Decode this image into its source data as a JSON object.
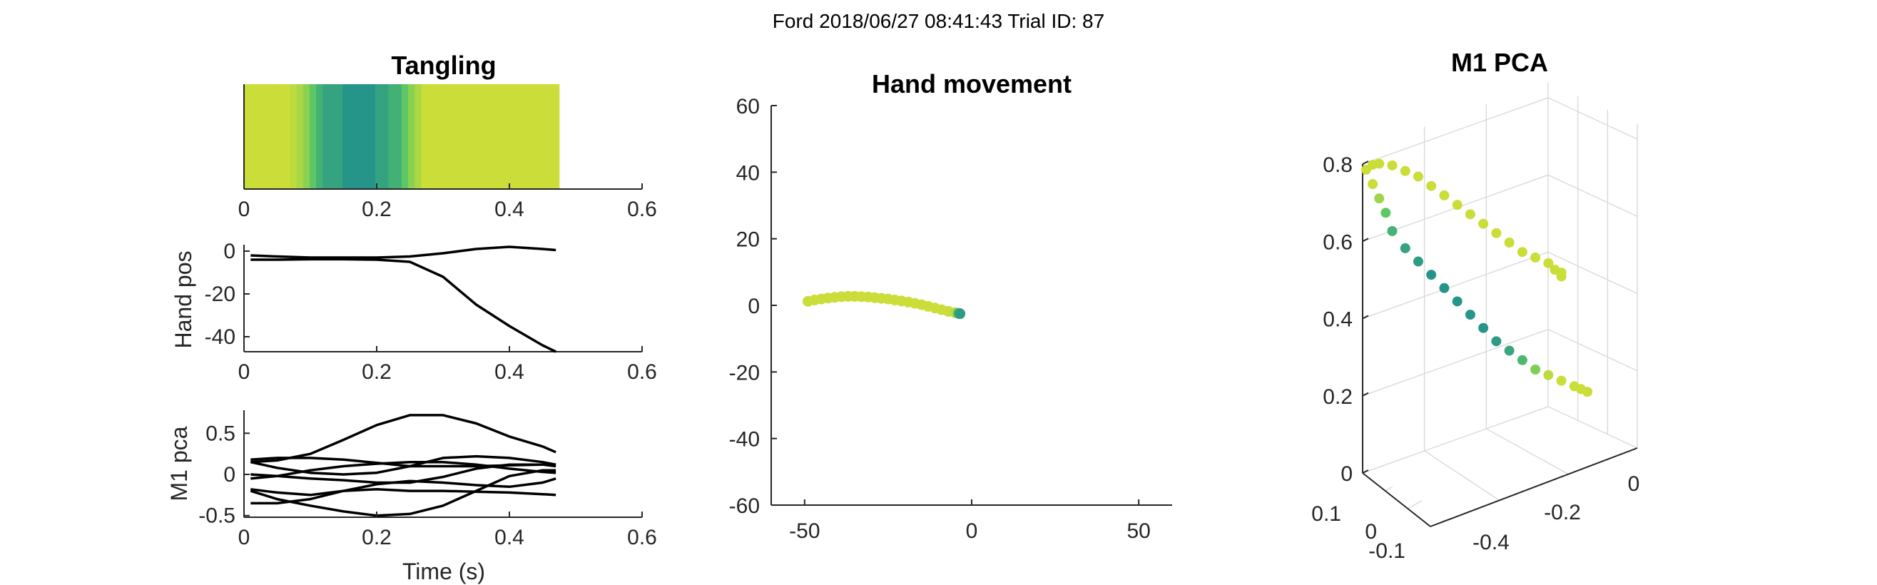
{
  "figure": {
    "title": "Ford 2018/06/27 08:41:43 Trial ID: 87"
  },
  "colors": {
    "axis": "#262626",
    "trace": "#000000",
    "grid": "#dcdcdc",
    "viridis": [
      "#440154",
      "#3b528b",
      "#21918c",
      "#5ec962",
      "#fde725"
    ]
  },
  "chart_data": [
    {
      "type": "heatmap",
      "title": "Tangling",
      "xlim": [
        0,
        0.6
      ],
      "xticks": [
        "0",
        "0.2",
        "0.4",
        "0.6"
      ],
      "x_range": [
        0,
        0.475
      ],
      "values": [
        0.92,
        0.92,
        0.92,
        0.92,
        0.92,
        0.92,
        0.92,
        0.9,
        0.87,
        0.82,
        0.74,
        0.64,
        0.58,
        0.58,
        0.58,
        0.52,
        0.52,
        0.52,
        0.52,
        0.52,
        0.58,
        0.58,
        0.64,
        0.64,
        0.74,
        0.82,
        0.87,
        0.92,
        0.92,
        0.92,
        0.92,
        0.92,
        0.92,
        0.92,
        0.92,
        0.92,
        0.92,
        0.92,
        0.92,
        0.92,
        0.92,
        0.92,
        0.92,
        0.92,
        0.92,
        0.92,
        0.92,
        0.92
      ],
      "grid": false
    },
    {
      "type": "line",
      "title": "",
      "ylabel": "Hand pos",
      "xlim": [
        0,
        0.6
      ],
      "ylim": [
        -47,
        3
      ],
      "xticks": [
        "0",
        "0.2",
        "0.4",
        "0.6"
      ],
      "yticks": [
        "0",
        "-20",
        "-40"
      ],
      "x": [
        0.01,
        0.05,
        0.1,
        0.15,
        0.2,
        0.25,
        0.3,
        0.35,
        0.4,
        0.45,
        0.47
      ],
      "series": [
        {
          "values": [
            -2,
            -2.5,
            -3,
            -3,
            -3,
            -2.5,
            -1,
            1,
            2,
            1,
            0.5
          ]
        },
        {
          "values": [
            -4,
            -4,
            -3.8,
            -3.8,
            -4,
            -5,
            -12,
            -25,
            -35,
            -44,
            -47
          ]
        }
      ],
      "grid": false
    },
    {
      "type": "line",
      "title": "",
      "xlabel": "Time (s)",
      "ylabel": "M1 pca",
      "xlim": [
        0,
        0.6
      ],
      "ylim": [
        -0.52,
        0.78
      ],
      "xticks": [
        "0",
        "0.2",
        "0.4",
        "0.6"
      ],
      "yticks": [
        "0.5",
        "0",
        "-0.5"
      ],
      "x": [
        0.01,
        0.05,
        0.1,
        0.15,
        0.2,
        0.25,
        0.3,
        0.35,
        0.4,
        0.45,
        0.47
      ],
      "series": [
        {
          "values": [
            0.15,
            0.17,
            0.25,
            0.42,
            0.6,
            0.72,
            0.72,
            0.62,
            0.46,
            0.34,
            0.27
          ]
        },
        {
          "values": [
            0.18,
            0.2,
            0.2,
            0.18,
            0.14,
            0.1,
            0.1,
            0.1,
            0.11,
            0.12,
            0.12
          ]
        },
        {
          "values": [
            0.15,
            0.08,
            0.02,
            0,
            0.02,
            0.1,
            0.2,
            0.22,
            0.2,
            0.15,
            0.12
          ]
        },
        {
          "values": [
            -0.05,
            -0.02,
            0.05,
            0.1,
            0.13,
            0.15,
            0.15,
            0.12,
            0.07,
            0.03,
            0.02
          ]
        },
        {
          "values": [
            0,
            -0.02,
            -0.05,
            -0.07,
            -0.1,
            -0.1,
            -0.03,
            0.07,
            0.12,
            0.12,
            0.1
          ]
        },
        {
          "values": [
            -0.18,
            -0.22,
            -0.25,
            -0.2,
            -0.12,
            -0.08,
            -0.1,
            -0.13,
            -0.15,
            -0.1,
            -0.05
          ]
        },
        {
          "values": [
            -0.35,
            -0.35,
            -0.3,
            -0.2,
            -0.18,
            -0.2,
            -0.2,
            -0.21,
            -0.22,
            -0.24,
            -0.25
          ]
        },
        {
          "values": [
            -0.2,
            -0.3,
            -0.38,
            -0.45,
            -0.5,
            -0.48,
            -0.38,
            -0.2,
            -0.02,
            0.05,
            0.05
          ]
        }
      ],
      "grid": false
    },
    {
      "type": "scatter",
      "title": "Hand movement",
      "xlim": [
        -60,
        60
      ],
      "ylim": [
        -60,
        60
      ],
      "xticks": [
        "-50",
        "0",
        "50"
      ],
      "yticks": [
        "60",
        "40",
        "20",
        "0",
        "-20",
        "-40",
        "-60"
      ],
      "points": [
        {
          "x": -49,
          "y": 1.2,
          "c": 0.92
        },
        {
          "x": -47,
          "y": 1.6,
          "c": 0.92
        },
        {
          "x": -45,
          "y": 1.9,
          "c": 0.92
        },
        {
          "x": -43,
          "y": 2.2,
          "c": 0.92
        },
        {
          "x": -41,
          "y": 2.4,
          "c": 0.92
        },
        {
          "x": -39,
          "y": 2.6,
          "c": 0.92
        },
        {
          "x": -37,
          "y": 2.7,
          "c": 0.92
        },
        {
          "x": -35,
          "y": 2.7,
          "c": 0.92
        },
        {
          "x": -33,
          "y": 2.6,
          "c": 0.92
        },
        {
          "x": -31,
          "y": 2.5,
          "c": 0.92
        },
        {
          "x": -29,
          "y": 2.3,
          "c": 0.92
        },
        {
          "x": -27,
          "y": 2.1,
          "c": 0.92
        },
        {
          "x": -25,
          "y": 1.9,
          "c": 0.92
        },
        {
          "x": -23,
          "y": 1.6,
          "c": 0.92
        },
        {
          "x": -21,
          "y": 1.3,
          "c": 0.92
        },
        {
          "x": -19,
          "y": 1.0,
          "c": 0.92
        },
        {
          "x": -17,
          "y": 0.6,
          "c": 0.92
        },
        {
          "x": -15,
          "y": 0.2,
          "c": 0.92
        },
        {
          "x": -13,
          "y": -0.3,
          "c": 0.92
        },
        {
          "x": -11,
          "y": -0.8,
          "c": 0.92
        },
        {
          "x": -9,
          "y": -1.3,
          "c": 0.92
        },
        {
          "x": -7,
          "y": -1.8,
          "c": 0.92
        },
        {
          "x": -5,
          "y": -2.2,
          "c": 0.9
        },
        {
          "x": -4,
          "y": -2.4,
          "c": 0.7
        },
        {
          "x": -3.5,
          "y": -2.5,
          "c": 0.55
        }
      ],
      "grid": false
    },
    {
      "type": "scatter",
      "title": "M1 PCA",
      "zlim": [
        0,
        0.8
      ],
      "zticks": [
        "0.8",
        "0.6",
        "0.4",
        "0.2",
        "0"
      ],
      "xticks": [
        "0",
        "-0.2",
        "-0.4"
      ],
      "yticks": [
        "0.1",
        "0",
        "-0.1"
      ],
      "points": [
        {
          "x": -0.45,
          "y": 0.02,
          "z": 0.73,
          "c": 0.92
        },
        {
          "x": -0.44,
          "y": 0.02,
          "z": 0.74,
          "c": 0.92
        },
        {
          "x": -0.43,
          "y": 0.02,
          "z": 0.74,
          "c": 0.92
        },
        {
          "x": -0.41,
          "y": 0.02,
          "z": 0.73,
          "c": 0.92
        },
        {
          "x": -0.39,
          "y": 0.02,
          "z": 0.71,
          "c": 0.92
        },
        {
          "x": -0.37,
          "y": 0.02,
          "z": 0.69,
          "c": 0.92
        },
        {
          "x": -0.35,
          "y": 0.02,
          "z": 0.66,
          "c": 0.92
        },
        {
          "x": -0.33,
          "y": 0.02,
          "z": 0.63,
          "c": 0.92
        },
        {
          "x": -0.31,
          "y": 0.02,
          "z": 0.6,
          "c": 0.92
        },
        {
          "x": -0.29,
          "y": 0.02,
          "z": 0.57,
          "c": 0.92
        },
        {
          "x": -0.27,
          "y": 0.02,
          "z": 0.54,
          "c": 0.92
        },
        {
          "x": -0.25,
          "y": 0.02,
          "z": 0.51,
          "c": 0.92
        },
        {
          "x": -0.23,
          "y": 0.02,
          "z": 0.48,
          "c": 0.92
        },
        {
          "x": -0.21,
          "y": 0.02,
          "z": 0.45,
          "c": 0.92
        },
        {
          "x": -0.19,
          "y": 0.02,
          "z": 0.43,
          "c": 0.92
        },
        {
          "x": -0.17,
          "y": 0.02,
          "z": 0.41,
          "c": 0.92
        },
        {
          "x": -0.16,
          "y": 0.02,
          "z": 0.39,
          "c": 0.92
        },
        {
          "x": -0.15,
          "y": 0.02,
          "z": 0.38,
          "c": 0.92
        },
        {
          "x": -0.15,
          "y": 0.02,
          "z": 0.37,
          "c": 0.92
        },
        {
          "x": -0.44,
          "y": 0.02,
          "z": 0.69,
          "c": 0.92
        },
        {
          "x": -0.43,
          "y": 0.02,
          "z": 0.65,
          "c": 0.85
        },
        {
          "x": -0.42,
          "y": 0.02,
          "z": 0.61,
          "c": 0.75
        },
        {
          "x": -0.41,
          "y": 0.02,
          "z": 0.56,
          "c": 0.65
        },
        {
          "x": -0.39,
          "y": 0.02,
          "z": 0.51,
          "c": 0.58
        },
        {
          "x": -0.37,
          "y": 0.02,
          "z": 0.47,
          "c": 0.55
        },
        {
          "x": -0.35,
          "y": 0.02,
          "z": 0.43,
          "c": 0.52
        },
        {
          "x": -0.33,
          "y": 0.02,
          "z": 0.39,
          "c": 0.52
        },
        {
          "x": -0.31,
          "y": 0.02,
          "z": 0.35,
          "c": 0.52
        },
        {
          "x": -0.29,
          "y": 0.02,
          "z": 0.31,
          "c": 0.52
        },
        {
          "x": -0.27,
          "y": 0.02,
          "z": 0.27,
          "c": 0.52
        },
        {
          "x": -0.25,
          "y": 0.02,
          "z": 0.23,
          "c": 0.55
        },
        {
          "x": -0.23,
          "y": 0.02,
          "z": 0.2,
          "c": 0.6
        },
        {
          "x": -0.21,
          "y": 0.02,
          "z": 0.17,
          "c": 0.68
        },
        {
          "x": -0.19,
          "y": 0.02,
          "z": 0.14,
          "c": 0.8
        },
        {
          "x": -0.17,
          "y": 0.02,
          "z": 0.12,
          "c": 0.9
        },
        {
          "x": -0.15,
          "y": 0.02,
          "z": 0.1,
          "c": 0.92
        },
        {
          "x": -0.13,
          "y": 0.02,
          "z": 0.08,
          "c": 0.92
        },
        {
          "x": -0.12,
          "y": 0.02,
          "z": 0.07,
          "c": 0.92
        },
        {
          "x": -0.11,
          "y": 0.02,
          "z": 0.06,
          "c": 0.92
        }
      ],
      "grid": true
    }
  ]
}
